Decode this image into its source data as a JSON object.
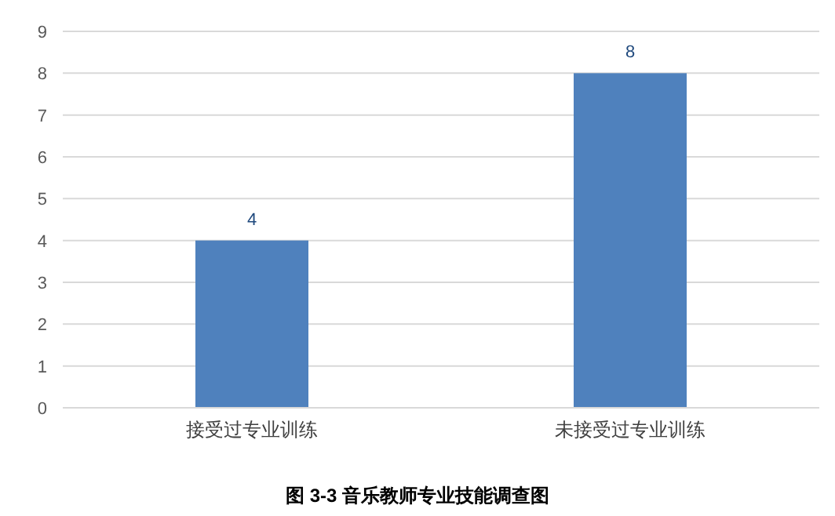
{
  "chart_data": {
    "type": "bar",
    "title": "图 3-3  音乐教师专业技能调查图",
    "categories": [
      "接受过专业训练",
      "未接受过专业训练"
    ],
    "values": [
      4,
      8
    ],
    "color": "#4f81bd",
    "ylim": [
      0,
      9
    ],
    "yticks": [
      0,
      1,
      2,
      3,
      4,
      5,
      6,
      7,
      8,
      9
    ],
    "grid": "y",
    "data_labels": true
  }
}
